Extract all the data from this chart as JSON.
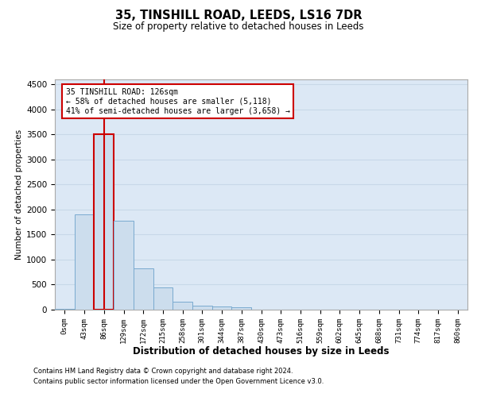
{
  "title1": "35, TINSHILL ROAD, LEEDS, LS16 7DR",
  "title2": "Size of property relative to detached houses in Leeds",
  "xlabel": "Distribution of detached houses by size in Leeds",
  "ylabel": "Number of detached properties",
  "bar_labels": [
    "0sqm",
    "43sqm",
    "86sqm",
    "129sqm",
    "172sqm",
    "215sqm",
    "258sqm",
    "301sqm",
    "344sqm",
    "387sqm",
    "430sqm",
    "473sqm",
    "516sqm",
    "559sqm",
    "602sqm",
    "645sqm",
    "688sqm",
    "731sqm",
    "774sqm",
    "817sqm",
    "860sqm"
  ],
  "bar_values": [
    20,
    1900,
    3500,
    1780,
    830,
    440,
    155,
    85,
    60,
    50,
    0,
    0,
    0,
    0,
    0,
    0,
    0,
    0,
    0,
    0,
    0
  ],
  "bar_color": "#ccdded",
  "bar_edge_color": "#7aaacf",
  "highlight_bar_index": 2,
  "highlight_edge_color": "#cc0000",
  "vline_color": "#cc0000",
  "ylim_max": 4600,
  "yticks": [
    0,
    500,
    1000,
    1500,
    2000,
    2500,
    3000,
    3500,
    4000,
    4500
  ],
  "annotation_line1": "35 TINSHILL ROAD: 126sqm",
  "annotation_line2": "← 58% of detached houses are smaller (5,118)",
  "annotation_line3": "41% of semi-detached houses are larger (3,658) →",
  "annotation_box_edge_color": "#cc0000",
  "footer1": "Contains HM Land Registry data © Crown copyright and database right 2024.",
  "footer2": "Contains public sector information licensed under the Open Government Licence v3.0.",
  "grid_color": "#c8d8e8",
  "bg_color": "#dce8f5"
}
